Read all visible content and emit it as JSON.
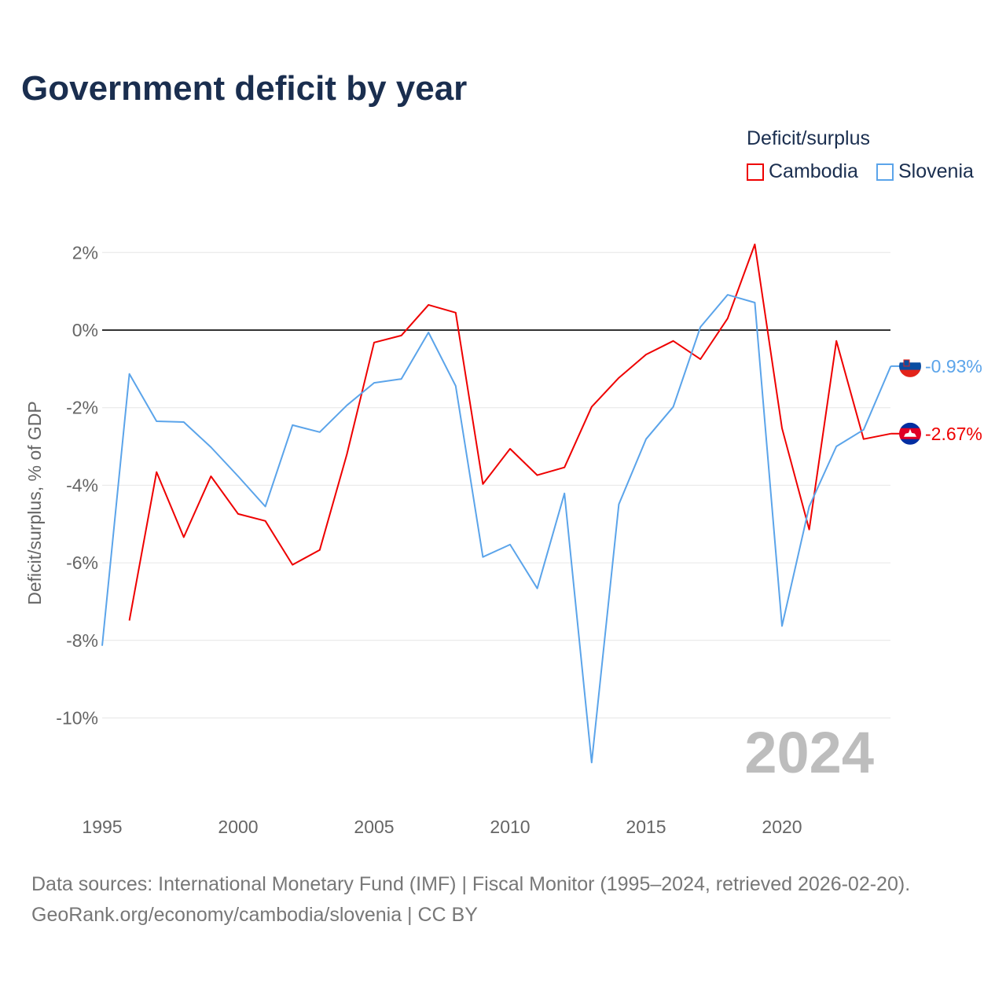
{
  "chart_data": {
    "type": "line",
    "title": "Government deficit by year",
    "ylabel": "Deficit/surplus, % of GDP",
    "xlabel": "",
    "legend_title": "Deficit/surplus",
    "legend_placement": "top-right",
    "ylim": [
      -12,
      2.5
    ],
    "xlim": [
      1995,
      2024
    ],
    "yticks": [
      2,
      0,
      -2,
      -4,
      -6,
      -8,
      -10
    ],
    "ytick_labels": [
      "2%",
      "0%",
      "-2%",
      "-4%",
      "-6%",
      "-8%",
      "-10%"
    ],
    "xticks": [
      1995,
      2000,
      2005,
      2010,
      2015,
      2020
    ],
    "xtick_labels": [
      "1995",
      "2000",
      "2005",
      "2010",
      "2015",
      "2020"
    ],
    "year_watermark": "2024",
    "series": [
      {
        "name": "Cambodia",
        "color": "#ee0000",
        "end_label": "-2.67%",
        "x": [
          1996,
          1997,
          1998,
          1999,
          2000,
          2001,
          2002,
          2003,
          2004,
          2005,
          2006,
          2007,
          2008,
          2009,
          2010,
          2011,
          2012,
          2013,
          2014,
          2015,
          2016,
          2017,
          2018,
          2019,
          2020,
          2021,
          2022,
          2023,
          2024
        ],
        "values": [
          -7.49,
          -3.66,
          -5.34,
          -3.77,
          -4.74,
          -4.92,
          -6.05,
          -5.67,
          -3.2,
          -0.32,
          -0.14,
          0.65,
          0.45,
          -3.97,
          -3.06,
          -3.74,
          -3.54,
          -1.98,
          -1.23,
          -0.63,
          -0.28,
          -0.75,
          0.3,
          2.21,
          -2.53,
          -5.14,
          -0.28,
          -2.81,
          -2.67
        ]
      },
      {
        "name": "Slovenia",
        "color": "#5ba4ea",
        "end_label": "-0.93%",
        "x": [
          1995,
          1996,
          1997,
          1998,
          1999,
          2000,
          2001,
          2002,
          2003,
          2004,
          2005,
          2006,
          2007,
          2008,
          2009,
          2010,
          2011,
          2012,
          2013,
          2014,
          2015,
          2016,
          2017,
          2018,
          2019,
          2020,
          2021,
          2022,
          2023,
          2024
        ],
        "values": [
          -8.14,
          -1.13,
          -2.35,
          -2.37,
          -3.02,
          -3.77,
          -4.55,
          -2.45,
          -2.63,
          -1.94,
          -1.36,
          -1.26,
          -0.06,
          -1.44,
          -5.85,
          -5.53,
          -6.66,
          -4.21,
          -11.15,
          -4.49,
          -2.81,
          -1.98,
          0.08,
          0.91,
          0.71,
          -7.63,
          -4.55,
          -3.0,
          -2.57,
          -0.93
        ]
      }
    ]
  },
  "source": {
    "line1": "Data sources: International Monetary Fund (IMF) | Fiscal Monitor (1995–2024, retrieved 2026-02-20).",
    "line2": "GeoRank.org/economy/cambodia/slovenia | CC BY"
  }
}
